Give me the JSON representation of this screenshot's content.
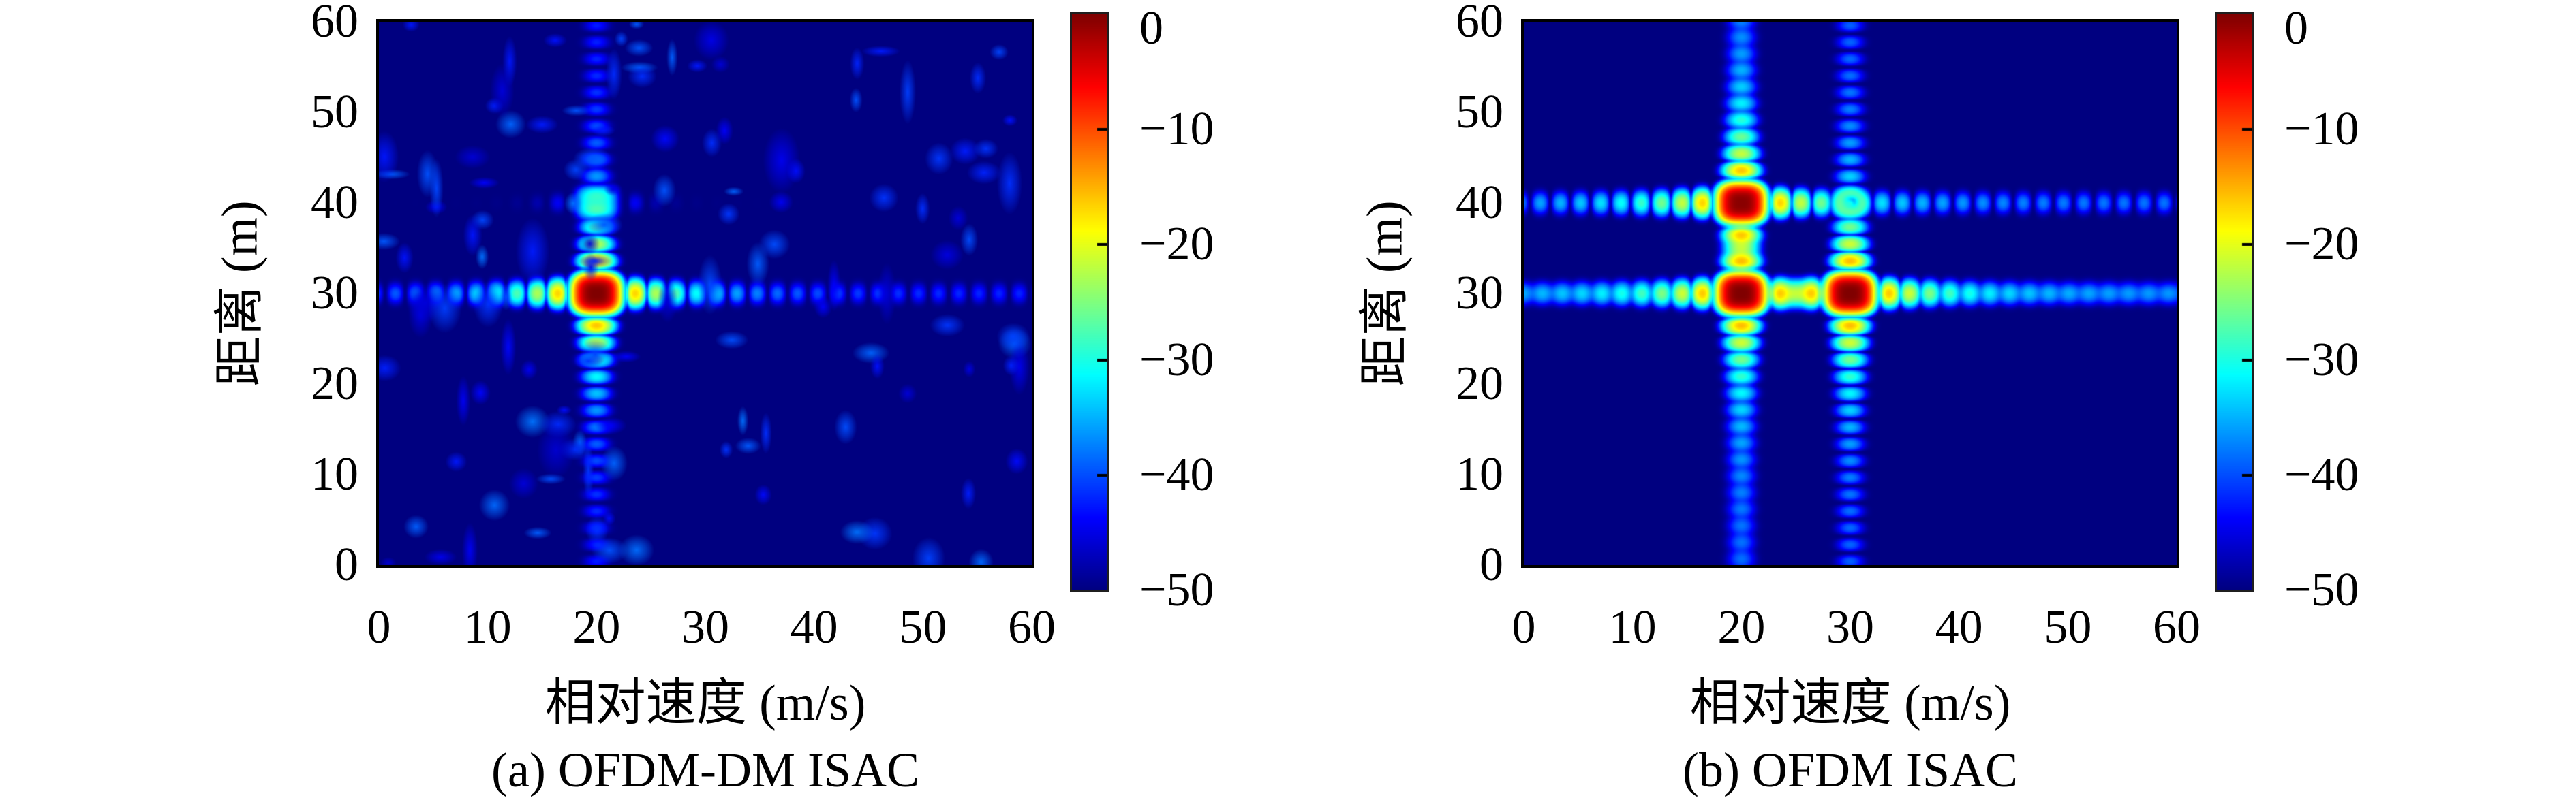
{
  "page": {
    "background": "#ffffff",
    "plot_background_db": -50
  },
  "chart_data": [
    {
      "type": "heatmap",
      "caption": "(a) OFDM-DM ISAC",
      "xlabel": "相对速度 (m/s)",
      "ylabel": "距离 (m)",
      "xlim": [
        0,
        60
      ],
      "ylim": [
        0,
        60
      ],
      "xticks": [
        0,
        10,
        20,
        30,
        40,
        50,
        60
      ],
      "yticks": [
        0,
        10,
        20,
        30,
        40,
        50,
        60
      ],
      "grid": false,
      "colormap": "jet",
      "background_db": -50,
      "colorbar": {
        "range_db": [
          -50,
          0
        ],
        "ticks_db": [
          0,
          -10,
          -20,
          -30,
          -40,
          -50
        ],
        "tick_labels": [
          "0",
          "−10",
          "−20",
          "−30",
          "−40",
          "−50"
        ]
      },
      "targets": [
        {
          "velocity_mps": 20,
          "range_m": 30,
          "peak_db": 0
        },
        {
          "velocity_mps": 20,
          "range_m": 40,
          "peak_db": -29
        }
      ],
      "sidelobes": {
        "spacing_units": 1.85,
        "column_near_db": -12,
        "column_far_db": -44,
        "row_near_db": -13,
        "row_far_db": -43
      },
      "noise_speckle": {
        "blob_count": 130,
        "min_db": -46,
        "max_db": -38,
        "seed": 97
      }
    },
    {
      "type": "heatmap",
      "caption": "(b) OFDM ISAC",
      "xlabel": "相对速度 (m/s)",
      "ylabel": "距离 (m)",
      "xlim": [
        0,
        60
      ],
      "ylim": [
        0,
        60
      ],
      "xticks": [
        0,
        10,
        20,
        30,
        40,
        50,
        60
      ],
      "yticks": [
        0,
        10,
        20,
        30,
        40,
        50,
        60
      ],
      "grid": false,
      "colormap": "jet",
      "background_db": -50,
      "colorbar": {
        "range_db": [
          -50,
          0
        ],
        "ticks_db": [
          0,
          -10,
          -20,
          -30,
          -40,
          -50
        ],
        "tick_labels": [
          "0",
          "−10",
          "−20",
          "−30",
          "−40",
          "−50"
        ]
      },
      "targets": [
        {
          "velocity_mps": 20,
          "range_m": 30,
          "peak_db": 0
        },
        {
          "velocity_mps": 30,
          "range_m": 30,
          "peak_db": 0
        },
        {
          "velocity_mps": 20,
          "range_m": 40,
          "peak_db": -0.5
        }
      ],
      "sidelobes": {
        "spacing_units": 1.85,
        "column_near_db": -12,
        "column_far_db": -40,
        "row_near_db": -13,
        "row_far_db": -38
      },
      "ghost_ring": {
        "velocity_mps": 30,
        "range_m": 40,
        "peak_db": -30,
        "radius_units": 1.15
      },
      "noise_speckle": {
        "blob_count": 0,
        "min_db": -46,
        "max_db": -40,
        "seed": 1
      }
    }
  ]
}
